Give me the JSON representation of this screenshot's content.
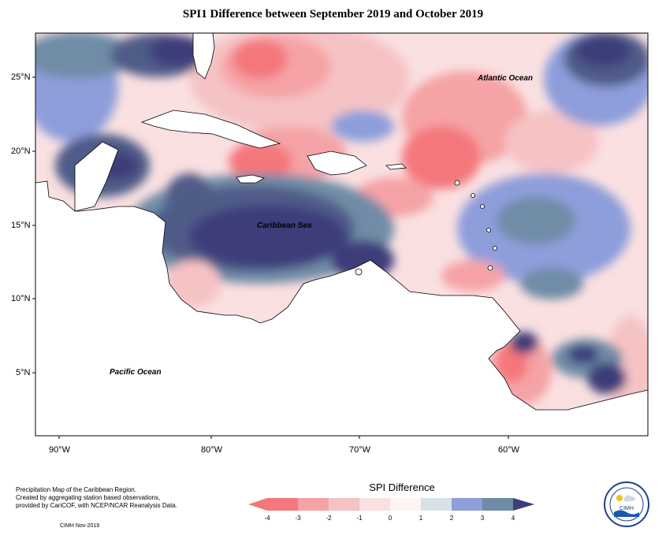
{
  "title": "SPI1 Difference between September 2019 and October 2019",
  "map": {
    "latitude_labels": [
      "25°N",
      "20°N",
      "15°N",
      "10°N",
      "5°N"
    ],
    "longitude_labels": [
      "90°W",
      "80°W",
      "70°W",
      "60°W"
    ],
    "labels": {
      "atlantic": "Atlantic Ocean",
      "caribbean": "Caribbean Sea",
      "pacific": "Pacific Ocean"
    },
    "colors": {
      "land": "#ffffff",
      "border": "#000000"
    }
  },
  "legend": {
    "title": "SPI Difference",
    "ticks": [
      "-4",
      "-3",
      "-2",
      "-1",
      "0",
      "1",
      "2",
      "3",
      "4"
    ],
    "colors": [
      "#f4777b",
      "#f5a3a6",
      "#f6c3c5",
      "#fae0e1",
      "#fdf4f4",
      "#d6e1ea",
      "#8e9edb",
      "#6f8ca6",
      "#505b88",
      "#3c3d7a"
    ]
  },
  "credits": {
    "line1": "Precipitation Map of the Caribbean Region.",
    "line2": "Created by aggregating station based observations,",
    "line3": "provided by CariCOF, with NCEP/NCAR Reanalysis Data.",
    "date": "CIMH Nov-2019"
  },
  "logo": {
    "text": "CIMH",
    "colors": {
      "sun": "#f2c21b",
      "ring": "#1f3f8f",
      "water": "#1c56b3"
    }
  }
}
